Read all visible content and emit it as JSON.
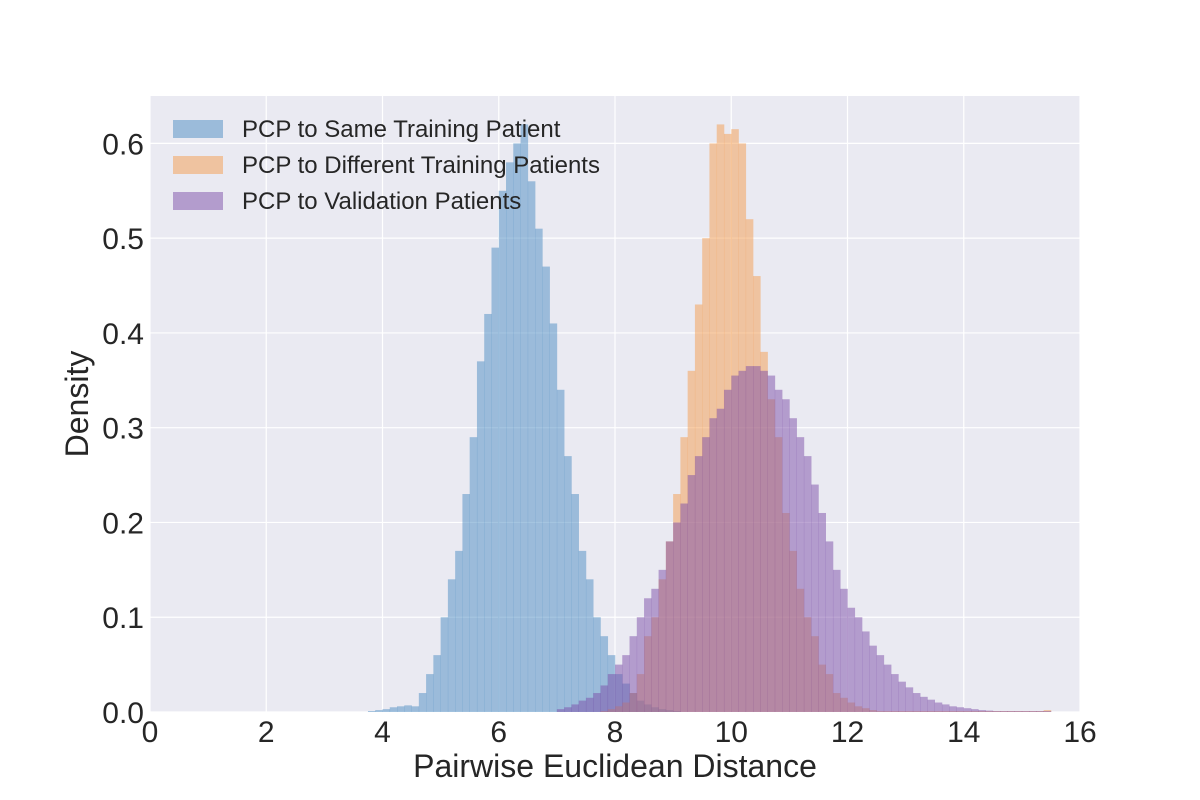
{
  "chart_data": {
    "type": "bar",
    "subtype": "overlapping-histogram",
    "xlabel": "Pairwise Euclidean Distance",
    "ylabel": "Density",
    "xlim": [
      0,
      16
    ],
    "ylim": [
      0,
      0.65
    ],
    "xticks": [
      0,
      2,
      4,
      6,
      8,
      10,
      12,
      14,
      16
    ],
    "xtick_labels": [
      "0",
      "2",
      "4",
      "6",
      "8",
      "10",
      "12",
      "14",
      "16"
    ],
    "yticks": [
      0.0,
      0.1,
      0.2,
      0.3,
      0.4,
      0.5,
      0.6
    ],
    "ytick_labels": [
      "0.0",
      "0.1",
      "0.2",
      "0.3",
      "0.4",
      "0.5",
      "0.6"
    ],
    "grid": true,
    "legend_position": "top-left",
    "bin_width": 0.125,
    "series": [
      {
        "name": "PCP to Same Training Patient",
        "color": "#4c8cc2",
        "alpha": 0.5,
        "bin_start": 3.75,
        "density": [
          0.001,
          0.002,
          0.003,
          0.005,
          0.006,
          0.007,
          0.006,
          0.02,
          0.04,
          0.06,
          0.1,
          0.14,
          0.17,
          0.23,
          0.29,
          0.37,
          0.42,
          0.49,
          0.55,
          0.58,
          0.6,
          0.62,
          0.56,
          0.51,
          0.47,
          0.41,
          0.34,
          0.27,
          0.23,
          0.17,
          0.14,
          0.1,
          0.08,
          0.06,
          0.04,
          0.03,
          0.02,
          0.012,
          0.008,
          0.005,
          0.003,
          0.002,
          0.001
        ]
      },
      {
        "name": "PCP to Different Training Patients",
        "color": "#f39c4e",
        "alpha": 0.5,
        "bin_start": 7.75,
        "density": [
          0.001,
          0.003,
          0.006,
          0.01,
          0.02,
          0.04,
          0.08,
          0.1,
          0.14,
          0.18,
          0.23,
          0.29,
          0.36,
          0.43,
          0.5,
          0.6,
          0.62,
          0.61,
          0.615,
          0.6,
          0.52,
          0.46,
          0.38,
          0.33,
          0.29,
          0.21,
          0.17,
          0.13,
          0.1,
          0.08,
          0.05,
          0.04,
          0.02,
          0.015,
          0.01,
          0.006,
          0.004,
          0.002,
          0.001,
          0.001,
          0.001,
          0.001,
          0.001,
          0.001,
          0.001,
          0.001,
          0.001,
          0.001,
          0.001,
          0.001,
          0.001,
          0.001,
          0.001,
          0.001,
          0.001,
          0.001,
          0.001,
          0.001,
          0.001,
          0.001,
          0.001,
          0.002
        ]
      },
      {
        "name": "PCP to Validation Patients",
        "color": "#7b4da8",
        "alpha": 0.5,
        "bin_start": 7.0,
        "density": [
          0.003,
          0.005,
          0.008,
          0.012,
          0.015,
          0.02,
          0.028,
          0.04,
          0.05,
          0.06,
          0.08,
          0.1,
          0.12,
          0.13,
          0.15,
          0.18,
          0.2,
          0.22,
          0.25,
          0.27,
          0.29,
          0.31,
          0.32,
          0.34,
          0.355,
          0.36,
          0.365,
          0.365,
          0.36,
          0.355,
          0.34,
          0.33,
          0.31,
          0.29,
          0.27,
          0.24,
          0.21,
          0.18,
          0.15,
          0.13,
          0.11,
          0.1,
          0.085,
          0.07,
          0.06,
          0.05,
          0.04,
          0.032,
          0.026,
          0.02,
          0.016,
          0.013,
          0.01,
          0.008,
          0.006,
          0.005,
          0.004,
          0.003,
          0.002,
          0.0015,
          0.001,
          0.001,
          0.001,
          0.001,
          0.001,
          0.001,
          0.001,
          0.001
        ]
      }
    ]
  }
}
